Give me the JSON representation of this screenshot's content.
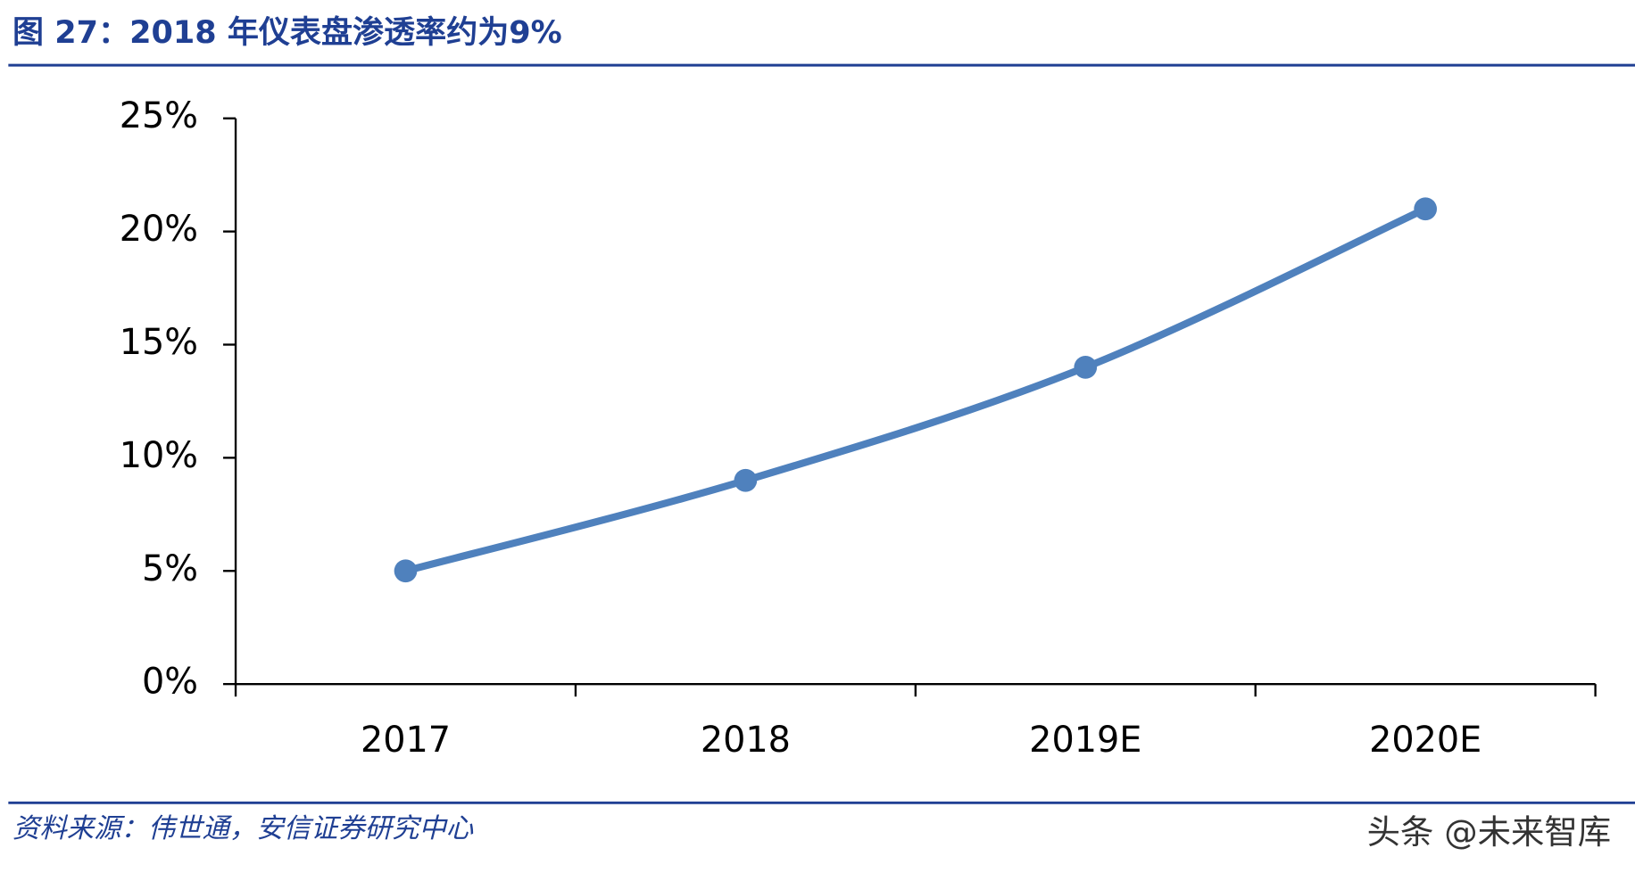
{
  "chart_data": {
    "type": "line",
    "title": "图 27：2018 年仪表盘渗透率约为9%",
    "categories": [
      "2017",
      "2018",
      "2019E",
      "2020E"
    ],
    "series": [
      {
        "name": "仪表盘渗透率",
        "color": "#4f81bd",
        "values": [
          5,
          9,
          14,
          21
        ]
      }
    ],
    "ylim": [
      0,
      25
    ],
    "yticks": [
      {
        "value": 0,
        "label": "0%"
      },
      {
        "value": 5,
        "label": "5%"
      },
      {
        "value": 10,
        "label": "10%"
      },
      {
        "value": 15,
        "label": "15%"
      },
      {
        "value": 20,
        "label": "20%"
      },
      {
        "value": 25,
        "label": "25%"
      }
    ],
    "grid": false,
    "legend": false,
    "source": "资料来源：伟世通，安信证券研究中心",
    "watermark": "头条 @未来智库"
  }
}
